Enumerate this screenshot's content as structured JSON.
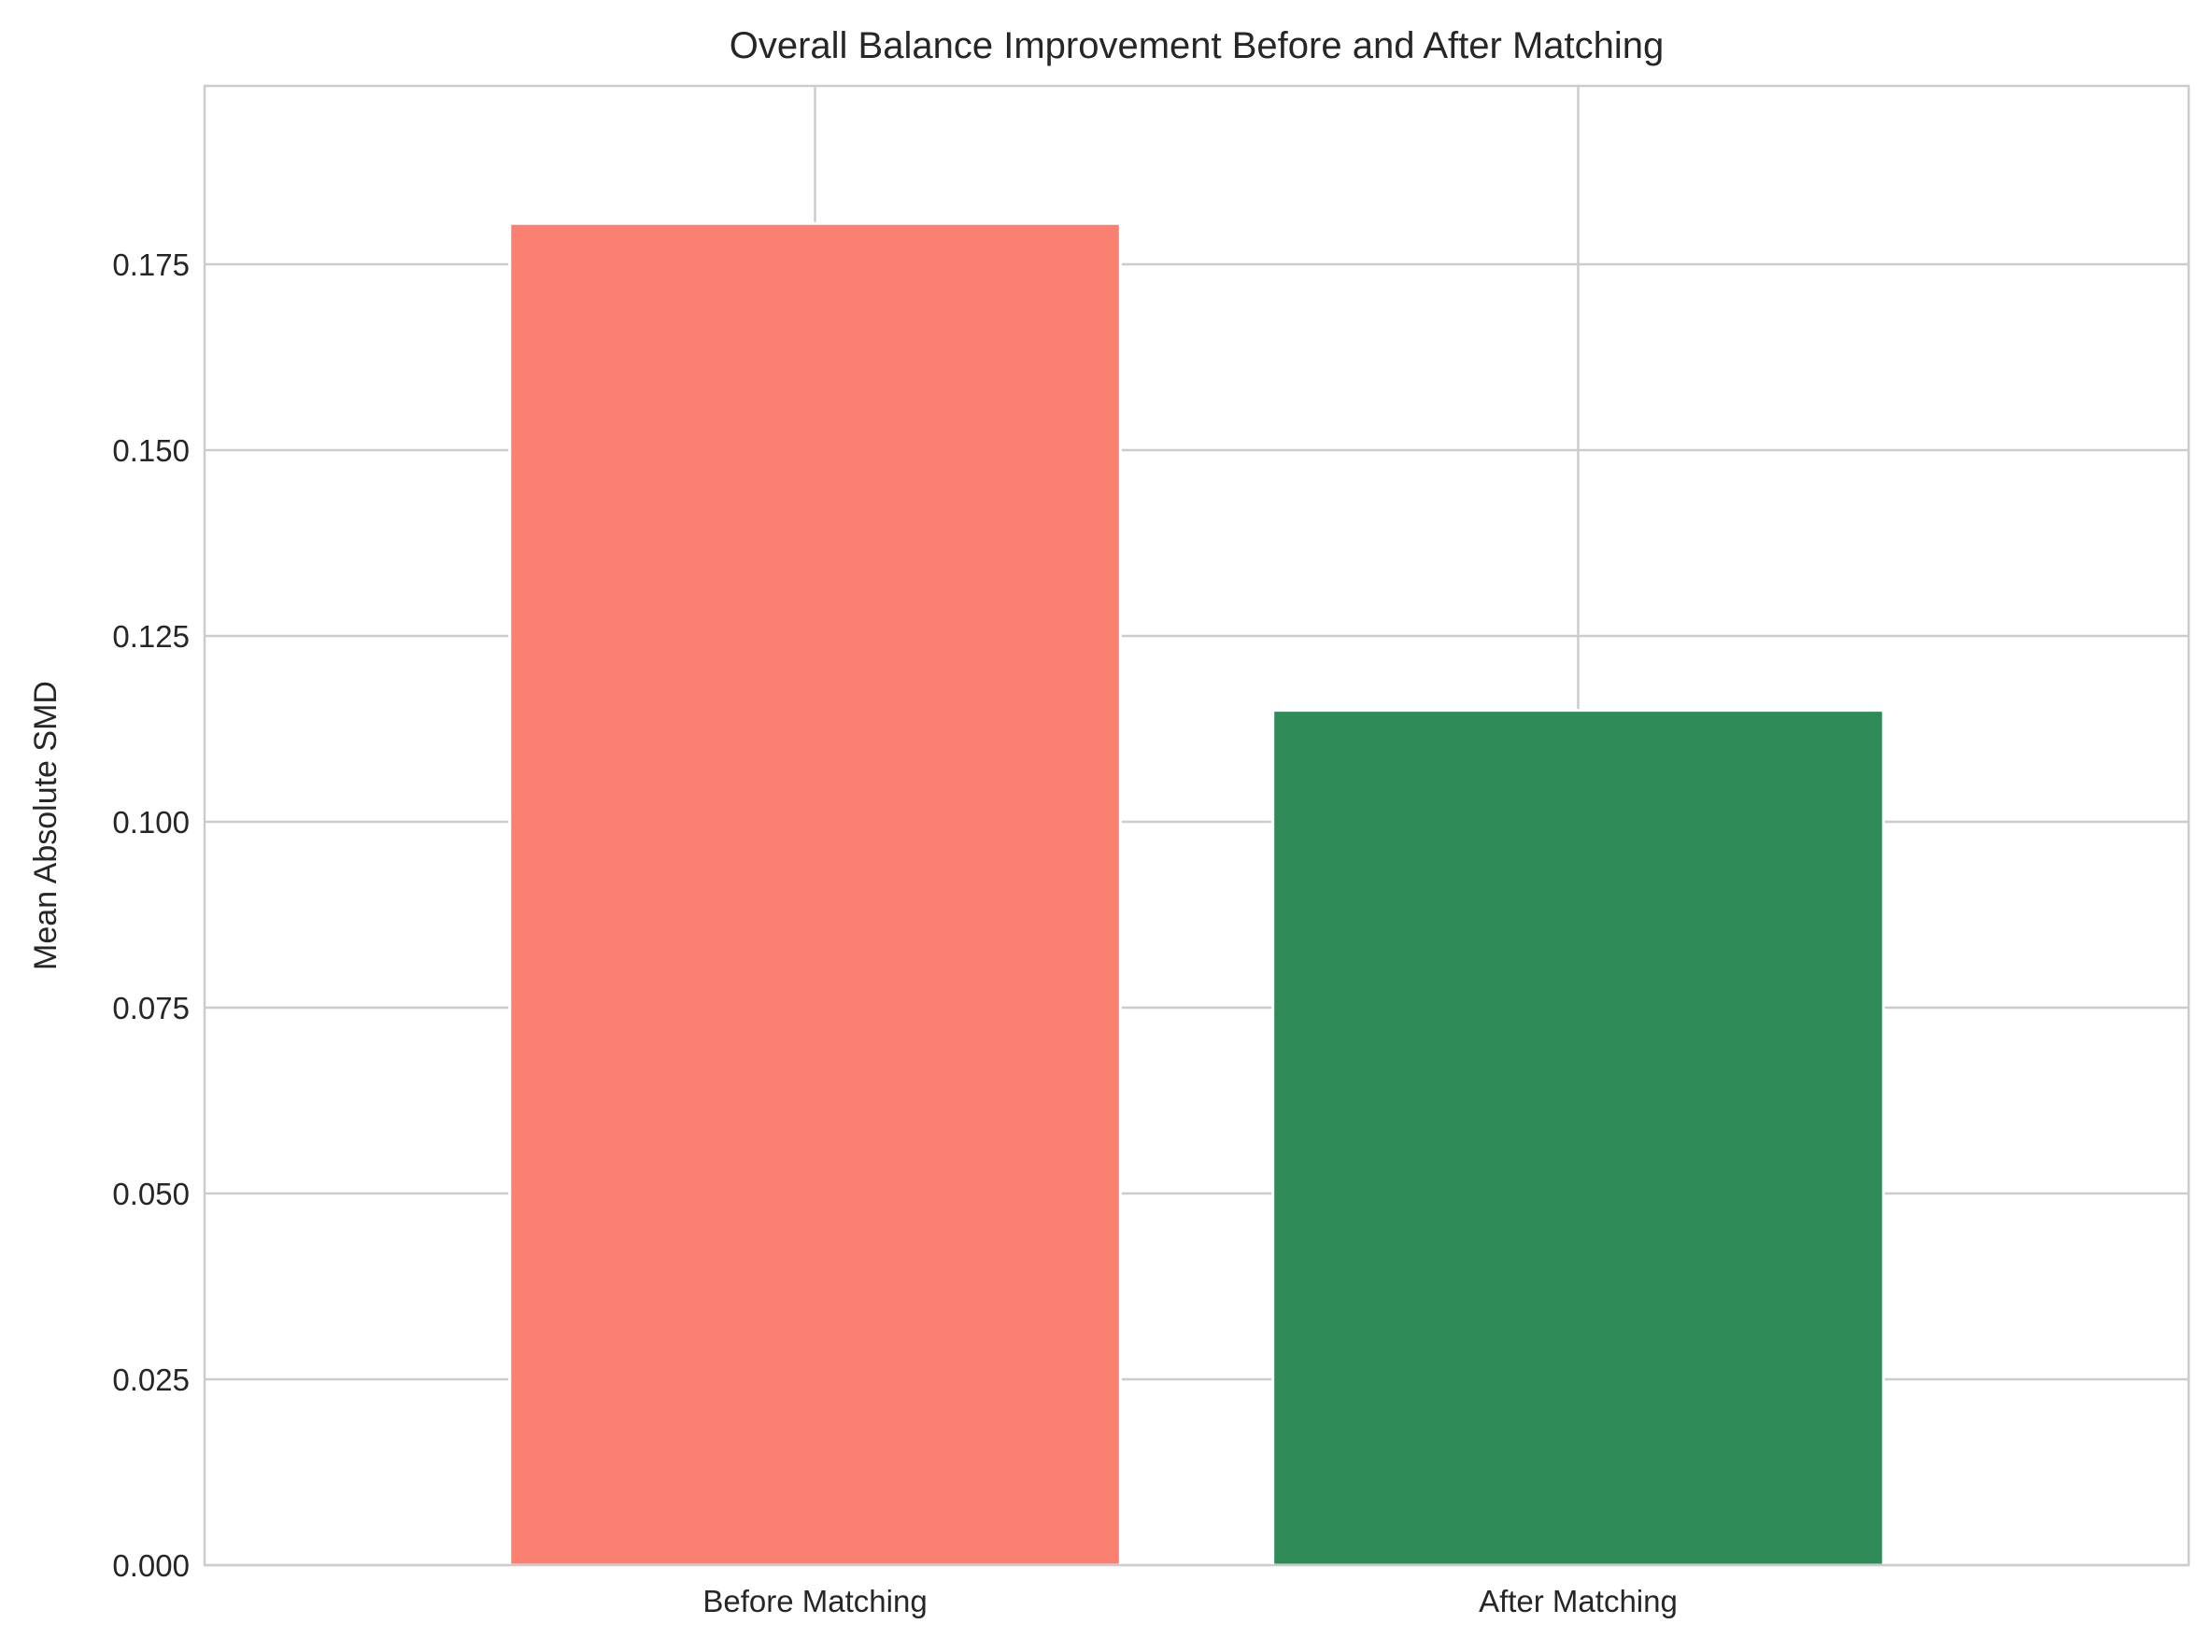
{
  "chart_data": {
    "type": "bar",
    "title": "Overall Balance Improvement Before and After Matching",
    "xlabel": "",
    "ylabel": "Mean Absolute SMD",
    "categories": [
      "Before Matching",
      "After Matching"
    ],
    "values": [
      0.1805,
      0.115
    ],
    "colors": [
      "#fa8072",
      "#2e8b57"
    ],
    "ylim": [
      0,
      0.199
    ],
    "yticks": [
      0,
      0.025,
      0.05,
      0.075,
      0.1,
      0.125,
      0.15,
      0.175
    ],
    "ytick_labels": [
      "0.000",
      "0.025",
      "0.050",
      "0.075",
      "0.100",
      "0.125",
      "0.150",
      "0.175"
    ],
    "grid": true,
    "grid_color": "#cccccc"
  }
}
